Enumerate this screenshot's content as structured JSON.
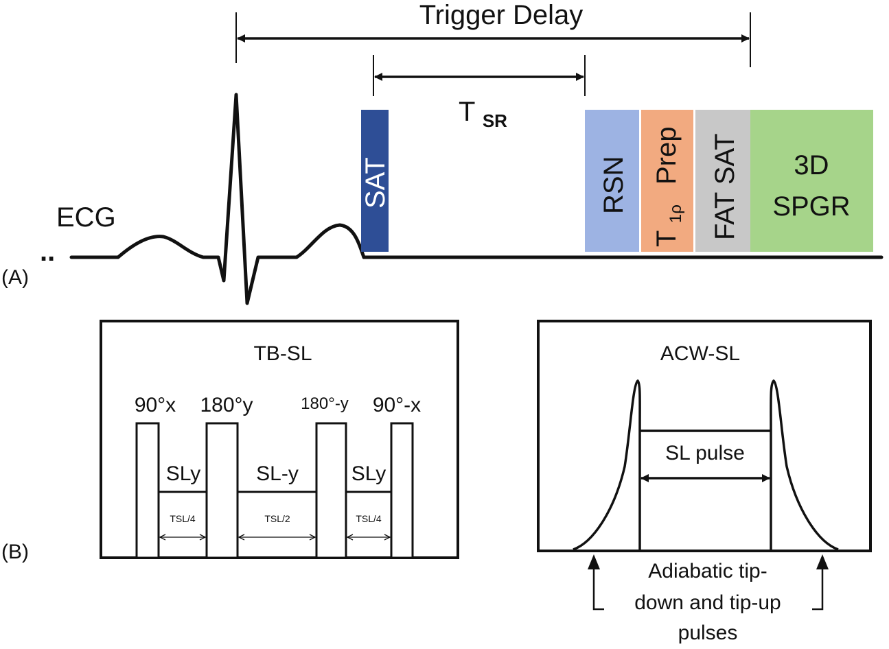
{
  "panel_a": {
    "label": "(A)",
    "trigger_delay": "Trigger Delay",
    "tsr_main": "T",
    "tsr_sub": "SR",
    "ecg_label": "ECG",
    "ellipsis": "..",
    "blocks": {
      "sat": "SAT",
      "rsn": "RSN",
      "t1rho_t": "T",
      "t1rho_sub": "1ρ",
      "prep": "Prep",
      "fat_sat": "FAT SAT",
      "spgr_line1": "3D",
      "spgr_line2": "SPGR"
    },
    "colors": {
      "sat": "#2e4e96",
      "rsn": "#9db3e3",
      "t1rho_prep": "#f2aa80",
      "fat_sat": "#c8c8c8",
      "spgr": "#a6d48a"
    }
  },
  "panel_b": {
    "label": "(B)",
    "tbsl": {
      "title": "TB-SL",
      "pulse_labels": [
        "90°x",
        "180°y",
        "180°-y",
        "90°-x"
      ],
      "segment_labels": [
        "SLy",
        "SL-y",
        "SLy"
      ],
      "durations": [
        "TSL/4",
        "TSL/2",
        "TSL/4"
      ]
    },
    "acwsl": {
      "title": "ACW-SL",
      "sl_pulse": "SL pulse",
      "caption_lines": [
        "Adiabatic tip-",
        "down and tip-up",
        "pulses"
      ]
    }
  }
}
